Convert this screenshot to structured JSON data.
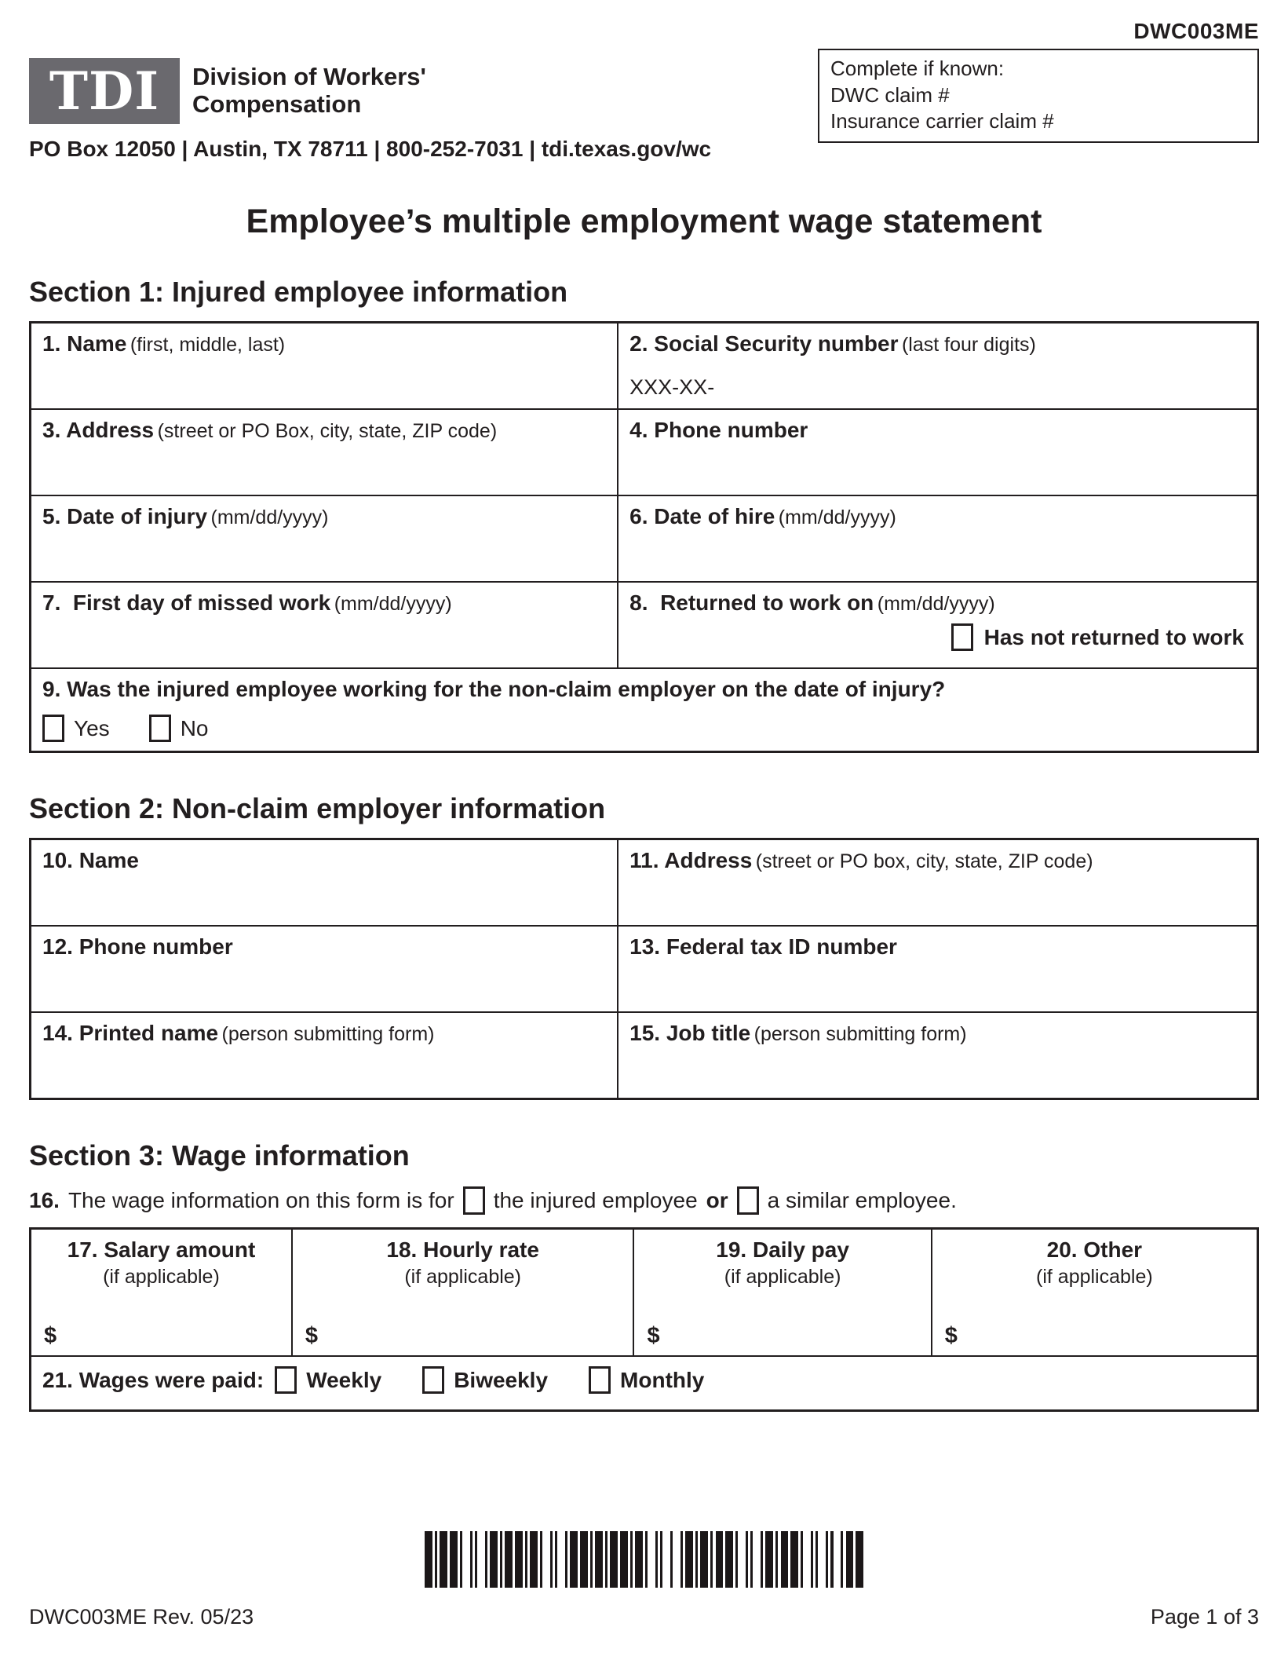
{
  "colors": {
    "ink": "#221e1f",
    "logo-bg": "#6a696e"
  },
  "form_code": "DWC003ME",
  "header": {
    "logo_text": "TDI",
    "agency_name_line1": "Division of Workers'",
    "agency_name_line2": "Compensation",
    "contact_line": "PO Box 12050 | Austin, TX 78711 | 800-252-7031 | tdi.texas.gov/wc",
    "claim_box": {
      "title": "Complete if known:",
      "dwc_claim_label": "DWC claim #",
      "carrier_claim_label": "Insurance carrier claim #"
    }
  },
  "title": "Employee’s multiple employment wage statement",
  "section1": {
    "heading": "Section 1: Injured employee information",
    "rows": [
      {
        "left": {
          "label": "1. Name",
          "hint": "(first, middle, last)"
        },
        "right": {
          "label": "2. Social Security number",
          "hint": "(last four digits)",
          "value": "XXX-XX-"
        }
      },
      {
        "left": {
          "label": "3. Address",
          "hint": "(street or PO Box, city, state, ZIP code)"
        },
        "right": {
          "label": "4. Phone number",
          "hint": ""
        }
      },
      {
        "left": {
          "label": "5. Date of injury",
          "hint": "(mm/dd/yyyy)"
        },
        "right": {
          "label": "6. Date of hire",
          "hint": "(mm/dd/yyyy)"
        }
      },
      {
        "left": {
          "label": "7.  First day of missed work",
          "hint": "(mm/dd/yyyy)"
        },
        "right": {
          "label": "8.  Returned to work on",
          "hint": "(mm/dd/yyyy)",
          "checkbox_label": "Has not returned to work"
        }
      }
    ],
    "q9": {
      "question": "9. Was the injured employee working for the non-claim employer on the date of injury?",
      "yes_label": "Yes",
      "no_label": "No"
    }
  },
  "section2": {
    "heading": "Section 2: Non-claim employer information",
    "rows": [
      {
        "left": {
          "label": "10. Name",
          "hint": ""
        },
        "right": {
          "label": "11. Address",
          "hint": "(street or PO box, city, state, ZIP code)"
        }
      },
      {
        "left": {
          "label": "12. Phone number",
          "hint": ""
        },
        "right": {
          "label": "13. Federal tax ID number",
          "hint": ""
        }
      },
      {
        "left": {
          "label": "14. Printed name",
          "hint": "(person submitting form)"
        },
        "right": {
          "label": "15. Job title",
          "hint": "(person submitting form)"
        }
      }
    ]
  },
  "section3": {
    "heading": "Section 3: Wage information",
    "q16": {
      "number": "16.",
      "text_before": "The wage information on this form is for",
      "option1": "the injured employee",
      "conjunction": "or",
      "option2": "a similar employee."
    },
    "wage_columns": [
      {
        "label": "17. Salary amount",
        "hint": "(if applicable)",
        "currency": "$"
      },
      {
        "label": "18. Hourly rate",
        "hint": "(if applicable)",
        "currency": "$"
      },
      {
        "label": "19. Daily pay",
        "hint": "(if applicable)",
        "currency": "$"
      },
      {
        "label": "20. Other",
        "hint": "(if applicable)",
        "currency": "$"
      }
    ],
    "q21": {
      "label": "21. Wages were paid:",
      "options": [
        "Weekly",
        "Biweekly",
        "Monthly"
      ]
    }
  },
  "barcode": {
    "pattern": "31113131131113113111313111311311131131311131113131113113111313113111311131311311131131113131131113111311313"
  },
  "footer": {
    "left": "DWC003ME Rev. 05/23",
    "right": "Page 1 of 3"
  }
}
